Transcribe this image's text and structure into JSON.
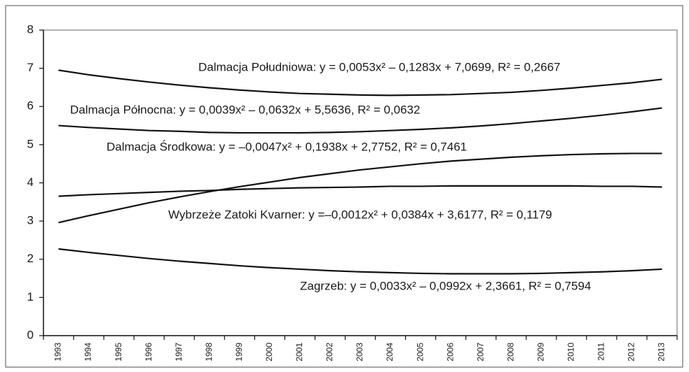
{
  "chart_data": {
    "type": "line",
    "categories": [
      "1993",
      "1994",
      "1995",
      "1996",
      "1997",
      "1998",
      "1999",
      "2000",
      "2001",
      "2002",
      "2003",
      "2004",
      "2005",
      "2006",
      "2007",
      "2008",
      "2009",
      "2010",
      "2011",
      "2012",
      "2013"
    ],
    "series": [
      {
        "color": "#111111",
        "values": [
          6.95,
          6.83,
          6.73,
          6.64,
          6.56,
          6.49,
          6.43,
          6.38,
          6.34,
          6.32,
          6.3,
          6.29,
          6.3,
          6.31,
          6.34,
          6.37,
          6.42,
          6.48,
          6.55,
          6.62,
          6.71
        ]
      },
      {
        "color": "#111111",
        "values": [
          5.5,
          5.45,
          5.41,
          5.37,
          5.35,
          5.32,
          5.31,
          5.31,
          5.31,
          5.32,
          5.34,
          5.37,
          5.4,
          5.44,
          5.49,
          5.55,
          5.62,
          5.69,
          5.77,
          5.86,
          5.96
        ]
      },
      {
        "color": "#111111",
        "values": [
          2.96,
          3.14,
          3.31,
          3.48,
          3.63,
          3.77,
          3.9,
          4.02,
          4.14,
          4.24,
          4.34,
          4.42,
          4.5,
          4.57,
          4.62,
          4.67,
          4.71,
          4.74,
          4.76,
          4.77,
          4.77
        ]
      },
      {
        "color": "#111111",
        "values": [
          3.65,
          3.69,
          3.72,
          3.75,
          3.78,
          3.8,
          3.83,
          3.85,
          3.87,
          3.88,
          3.89,
          3.91,
          3.91,
          3.92,
          3.92,
          3.92,
          3.92,
          3.92,
          3.91,
          3.91,
          3.89
        ]
      },
      {
        "color": "#111111",
        "values": [
          2.27,
          2.18,
          2.1,
          2.02,
          1.95,
          1.89,
          1.83,
          1.78,
          1.74,
          1.7,
          1.67,
          1.65,
          1.63,
          1.62,
          1.62,
          1.62,
          1.63,
          1.65,
          1.67,
          1.7,
          1.74
        ]
      }
    ],
    "annotations": [
      "Dalmacja Południowa: y = 0,0053x² – 0,1283x + 7,0699, R² = 0,2667",
      "Dalmacja Północna: y = 0,0039x² – 0,0632x + 5,5636, R² = 0,0632",
      "Dalmacja Środkowa: y = –0,0047x² + 0,1938x + 2,7752, R² = 0,7461",
      "Wybrzeże Zatoki Kvarner: y =–0,0012x² + 0,0384x + 3,6177, R² = 0,1179",
      "Zagrzeb: y = 0,0033x² – 0,0992x + 2,3661, R² = 0,7594"
    ],
    "ylim": [
      0,
      8
    ],
    "yticks": [
      0,
      1,
      2,
      3,
      4,
      5,
      6,
      7,
      8
    ]
  }
}
